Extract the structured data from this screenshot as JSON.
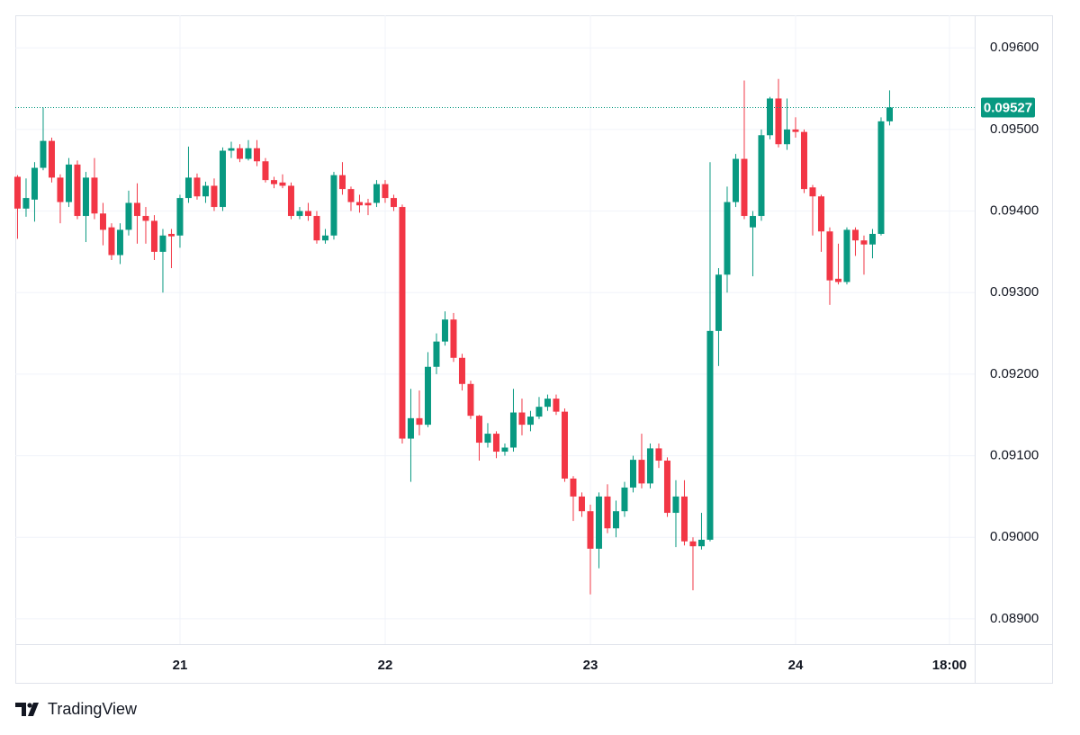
{
  "chart_data": {
    "type": "candlestick",
    "brand": "TradingView",
    "up_color": "#089981",
    "down_color": "#f23645",
    "grid": true,
    "xlim": [
      -19.26,
      92.95
    ],
    "ylim": [
      0.08869,
      0.0964
    ],
    "xticks": [
      {
        "value": 0,
        "label": "21"
      },
      {
        "value": 24,
        "label": "22"
      },
      {
        "value": 48,
        "label": "23"
      },
      {
        "value": 72,
        "label": "24"
      },
      {
        "value": 90,
        "label": "18:00"
      }
    ],
    "yticks": [
      {
        "value": 0.089,
        "label": "0.08900"
      },
      {
        "value": 0.09,
        "label": "0.09000"
      },
      {
        "value": 0.091,
        "label": "0.09100"
      },
      {
        "value": 0.092,
        "label": "0.09200"
      },
      {
        "value": 0.093,
        "label": "0.09300"
      },
      {
        "value": 0.094,
        "label": "0.09400"
      },
      {
        "value": 0.095,
        "label": "0.09500"
      },
      {
        "value": 0.096,
        "label": "0.09600"
      }
    ],
    "last_price": 0.09527,
    "x": [
      -19,
      -18,
      -17,
      -16,
      -15,
      -14,
      -13,
      -12,
      -11,
      -10,
      -9,
      -8,
      -7,
      -6,
      -5,
      -4,
      -3,
      -2,
      -1,
      0,
      1,
      2,
      3,
      4,
      5,
      6,
      7,
      8,
      9,
      10,
      11,
      12,
      13,
      14,
      15,
      16,
      17,
      18,
      19,
      20,
      21,
      22,
      23,
      24,
      25,
      26,
      27,
      28,
      29,
      30,
      31,
      32,
      33,
      34,
      35,
      36,
      37,
      38,
      39,
      40,
      41,
      42,
      43,
      44,
      45,
      46,
      47,
      48,
      49,
      50,
      51,
      52,
      53,
      54,
      55,
      56,
      57,
      58,
      59,
      60,
      61,
      62,
      63,
      64,
      65,
      66,
      67,
      68,
      69,
      70,
      71,
      72,
      73,
      74,
      75,
      76,
      77,
      78,
      79,
      80,
      81,
      82,
      83
    ],
    "open": [
      0.09442,
      0.09403,
      0.09414,
      0.09453,
      0.09486,
      0.09441,
      0.09411,
      0.09457,
      0.09394,
      0.09441,
      0.09397,
      0.0938,
      0.09346,
      0.09377,
      0.0941,
      0.09394,
      0.09388,
      0.0935,
      0.09372,
      0.0937,
      0.09416,
      0.09441,
      0.09418,
      0.09431,
      0.09405,
      0.09474,
      0.09477,
      0.09464,
      0.09477,
      0.09461,
      0.09438,
      0.09435,
      0.09431,
      0.09394,
      0.094,
      0.09394,
      0.09364,
      0.0937,
      0.09444,
      0.09427,
      0.09411,
      0.0941,
      0.0941,
      0.09433,
      0.09416,
      0.09405,
      0.09121,
      0.09146,
      0.09138,
      0.09209,
      0.0924,
      0.09267,
      0.0922,
      0.09188,
      0.09149,
      0.09116,
      0.09127,
      0.09105,
      0.0911,
      0.09153,
      0.09138,
      0.09148,
      0.0916,
      0.0917,
      0.09154,
      0.09072,
      0.0905,
      0.09032,
      0.08986,
      0.0905,
      0.09011,
      0.09032,
      0.09061,
      0.09095,
      0.09066,
      0.09109,
      0.09094,
      0.0903,
      0.0905,
      0.08995,
      0.08989,
      0.08997,
      0.09253,
      0.09322,
      0.09411,
      0.09464,
      0.0938,
      0.09394,
      0.09493,
      0.09538,
      0.09482,
      0.095,
      0.09497,
      0.09429,
      0.09418,
      0.09375,
      0.09317,
      0.09313,
      0.09377,
      0.09364,
      0.09359,
      0.09372,
      0.0951
    ],
    "high": [
      0.09444,
      0.0944,
      0.0946,
      0.09527,
      0.0949,
      0.09445,
      0.09465,
      0.09462,
      0.09448,
      0.09465,
      0.0941,
      0.09385,
      0.09385,
      0.09425,
      0.09434,
      0.09405,
      0.09395,
      0.09378,
      0.09378,
      0.0942,
      0.09479,
      0.09446,
      0.09436,
      0.0944,
      0.09478,
      0.09485,
      0.09482,
      0.09487,
      0.09487,
      0.09465,
      0.09442,
      0.09445,
      0.09435,
      0.09405,
      0.0941,
      0.094,
      0.09378,
      0.09448,
      0.0946,
      0.0943,
      0.0942,
      0.09415,
      0.09438,
      0.09438,
      0.0942,
      0.09408,
      0.09182,
      0.0918,
      0.09227,
      0.0925,
      0.09277,
      0.09275,
      0.09225,
      0.09192,
      0.0915,
      0.0914,
      0.0913,
      0.09115,
      0.09182,
      0.0917,
      0.09155,
      0.09172,
      0.09175,
      0.09175,
      0.09158,
      0.09075,
      0.09055,
      0.0904,
      0.09055,
      0.09065,
      0.09045,
      0.09068,
      0.091,
      0.09127,
      0.09115,
      0.09115,
      0.09098,
      0.0907,
      0.0907,
      0.09,
      0.0903,
      0.0946,
      0.0933,
      0.0943,
      0.0947,
      0.0956,
      0.094,
      0.095,
      0.0954,
      0.09562,
      0.09538,
      0.09515,
      0.095,
      0.09432,
      0.0942,
      0.0938,
      0.0936,
      0.0938,
      0.0938,
      0.0937,
      0.09378,
      0.09515,
      0.09548
    ],
    "low": [
      0.09366,
      0.09393,
      0.09387,
      0.0945,
      0.09435,
      0.09385,
      0.09405,
      0.0939,
      0.09362,
      0.0939,
      0.09358,
      0.0934,
      0.09335,
      0.0937,
      0.0936,
      0.0936,
      0.0934,
      0.093,
      0.0933,
      0.09355,
      0.0941,
      0.09414,
      0.0941,
      0.094,
      0.094,
      0.09465,
      0.0946,
      0.09462,
      0.09455,
      0.09435,
      0.09428,
      0.09428,
      0.0939,
      0.0939,
      0.09388,
      0.0936,
      0.0936,
      0.09365,
      0.0942,
      0.094,
      0.09398,
      0.09395,
      0.09405,
      0.0941,
      0.094,
      0.09115,
      0.09068,
      0.09125,
      0.09135,
      0.092,
      0.09235,
      0.09215,
      0.0918,
      0.09145,
      0.09094,
      0.0911,
      0.09097,
      0.091,
      0.09105,
      0.09125,
      0.0913,
      0.09145,
      0.09155,
      0.0915,
      0.09068,
      0.0902,
      0.09025,
      0.0893,
      0.08962,
      0.09005,
      0.09,
      0.09025,
      0.09055,
      0.0906,
      0.0906,
      0.09085,
      0.09025,
      0.08988,
      0.0899,
      0.08935,
      0.08985,
      0.08995,
      0.0921,
      0.093,
      0.09405,
      0.0939,
      0.0932,
      0.09388,
      0.09488,
      0.09478,
      0.09475,
      0.0949,
      0.09422,
      0.0937,
      0.0935,
      0.09285,
      0.0931,
      0.0931,
      0.09345,
      0.09322,
      0.09342,
      0.0937,
      0.09505
    ],
    "close": [
      0.09403,
      0.09416,
      0.09453,
      0.09486,
      0.09441,
      0.09411,
      0.09457,
      0.09394,
      0.09441,
      0.09397,
      0.09377,
      0.09346,
      0.09377,
      0.0941,
      0.09394,
      0.09388,
      0.0935,
      0.0937,
      0.09369,
      0.09416,
      0.09441,
      0.09418,
      0.09431,
      0.09405,
      0.09474,
      0.09477,
      0.09464,
      0.09477,
      0.09461,
      0.09438,
      0.09433,
      0.09431,
      0.09394,
      0.094,
      0.09394,
      0.09364,
      0.0937,
      0.09444,
      0.09427,
      0.09411,
      0.09407,
      0.09407,
      0.09433,
      0.09416,
      0.09405,
      0.09121,
      0.09146,
      0.09138,
      0.09209,
      0.0924,
      0.09267,
      0.0922,
      0.09188,
      0.09149,
      0.09116,
      0.09127,
      0.09105,
      0.0911,
      0.09153,
      0.09138,
      0.09148,
      0.0916,
      0.0917,
      0.09154,
      0.09072,
      0.0905,
      0.09032,
      0.08986,
      0.0905,
      0.09011,
      0.09032,
      0.09061,
      0.09095,
      0.09066,
      0.09109,
      0.09094,
      0.0903,
      0.0905,
      0.08995,
      0.08989,
      0.08997,
      0.09253,
      0.09322,
      0.09411,
      0.09464,
      0.09394,
      0.09394,
      0.09493,
      0.09538,
      0.09482,
      0.095,
      0.09497,
      0.09427,
      0.09418,
      0.09375,
      0.09315,
      0.09313,
      0.09377,
      0.09364,
      0.09359,
      0.09372,
      0.0951,
      0.09527
    ]
  }
}
